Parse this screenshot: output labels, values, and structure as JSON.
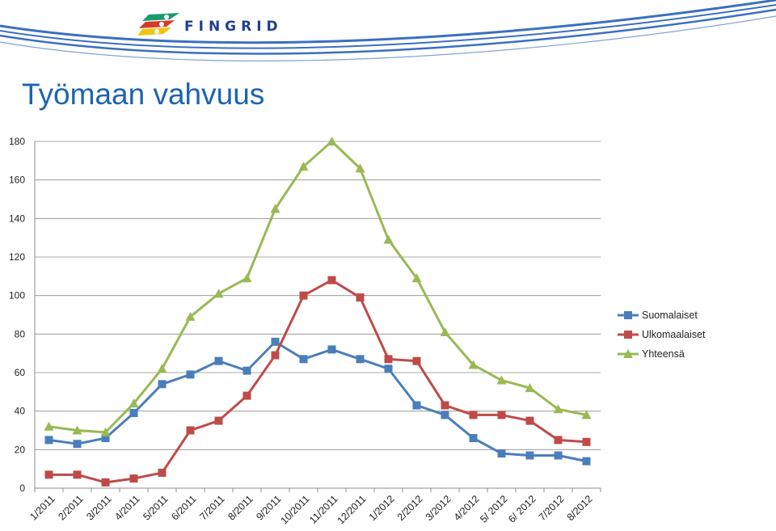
{
  "header": {
    "logo_text": "FINGRID"
  },
  "page": {
    "title": "Työmaan vahvuus"
  },
  "colors": {
    "title": "#1b63b3",
    "swoosh": "#3b6fc0",
    "logo_green": "#1a9a6b",
    "logo_red": "#d63a2a",
    "logo_yellow": "#f1c40f"
  },
  "chart_data": {
    "type": "line",
    "title": "",
    "xlabel": "",
    "ylabel": "",
    "ylim": [
      0,
      180
    ],
    "yticks": [
      0,
      20,
      40,
      60,
      80,
      100,
      120,
      140,
      160,
      180
    ],
    "grid": true,
    "legend_position": "right",
    "categories": [
      "1/2011",
      "2/2011",
      "3/2011",
      "4/2011",
      "5/2011",
      "6/2011",
      "7/2011",
      "8/2011",
      "9/2011",
      "10/2011",
      "11/2011",
      "12/2011",
      "1/2012",
      "2/2012",
      "3/2012",
      "4/2012",
      "5/ 2012",
      "6/ 2012",
      "7/2012",
      "8/2012"
    ],
    "series": [
      {
        "name": "Suomalaiset",
        "color": "#4a7ebb",
        "marker": "square",
        "values": [
          25,
          23,
          26,
          39,
          54,
          59,
          66,
          61,
          76,
          67,
          72,
          67,
          62,
          43,
          38,
          26,
          18,
          17,
          17,
          14
        ]
      },
      {
        "name": "Ulkomaalaiset",
        "color": "#be4b48",
        "marker": "square",
        "values": [
          7,
          7,
          3,
          5,
          8,
          30,
          35,
          48,
          69,
          100,
          108,
          99,
          67,
          66,
          43,
          38,
          38,
          35,
          25,
          24
        ]
      },
      {
        "name": "Yhteensä",
        "color": "#98b954",
        "marker": "triangle",
        "values": [
          32,
          30,
          29,
          44,
          62,
          89,
          101,
          109,
          145,
          167,
          180,
          166,
          129,
          109,
          81,
          64,
          56,
          52,
          41,
          38
        ]
      }
    ]
  }
}
